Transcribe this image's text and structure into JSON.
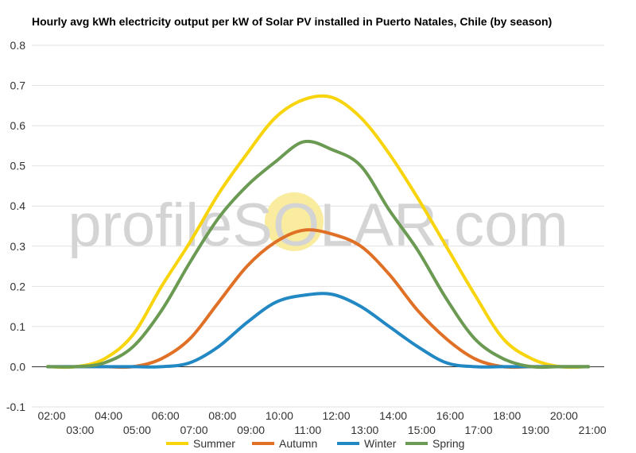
{
  "watermark": {
    "text_left": "profileS",
    "text_mid": "O",
    "text_right": "LAR.com",
    "sun_color": "#f9ec9e"
  },
  "chart_data": {
    "type": "line",
    "title": "Hourly avg kWh electricity output per kW of Solar PV installed in Puerto Natales, Chile (by season)",
    "xlabel": "",
    "ylabel": "",
    "ylim": [
      -0.1,
      0.8
    ],
    "yticks": [
      -0.1,
      0.0,
      0.1,
      0.2,
      0.3,
      0.4,
      0.5,
      0.6,
      0.7,
      0.8
    ],
    "ytick_labels": [
      "-0.1",
      "0.0",
      "0.1",
      "0.2",
      "0.3",
      "0.4",
      "0.5",
      "0.6",
      "0.7",
      "0.8"
    ],
    "x": [
      "02:00",
      "03:00",
      "04:00",
      "05:00",
      "06:00",
      "07:00",
      "08:00",
      "09:00",
      "10:00",
      "11:00",
      "12:00",
      "13:00",
      "14:00",
      "15:00",
      "16:00",
      "17:00",
      "18:00",
      "19:00",
      "20:00",
      "21:00"
    ],
    "grid": true,
    "legend_position": "bottom",
    "series": [
      {
        "name": "Summer",
        "color": "#f7d40c",
        "values": [
          0.0,
          0.0,
          0.02,
          0.08,
          0.2,
          0.31,
          0.43,
          0.53,
          0.62,
          0.665,
          0.67,
          0.62,
          0.53,
          0.42,
          0.3,
          0.18,
          0.07,
          0.02,
          0.0,
          0.0
        ]
      },
      {
        "name": "Autumn",
        "color": "#e07025",
        "values": [
          0.0,
          0.0,
          0.0,
          0.0,
          0.02,
          0.07,
          0.16,
          0.25,
          0.31,
          0.34,
          0.33,
          0.3,
          0.23,
          0.14,
          0.07,
          0.02,
          0.0,
          0.0,
          0.0,
          0.0
        ]
      },
      {
        "name": "Winter",
        "color": "#2188c4",
        "values": [
          0.0,
          0.0,
          0.0,
          0.0,
          0.0,
          0.01,
          0.05,
          0.11,
          0.16,
          0.178,
          0.18,
          0.15,
          0.1,
          0.05,
          0.01,
          0.0,
          0.0,
          0.0,
          0.0,
          0.0
        ]
      },
      {
        "name": "Spring",
        "color": "#6b9a52",
        "values": [
          0.0,
          0.0,
          0.01,
          0.05,
          0.14,
          0.26,
          0.37,
          0.45,
          0.51,
          0.56,
          0.54,
          0.5,
          0.39,
          0.29,
          0.17,
          0.07,
          0.02,
          0.0,
          0.0,
          0.0
        ]
      }
    ]
  }
}
